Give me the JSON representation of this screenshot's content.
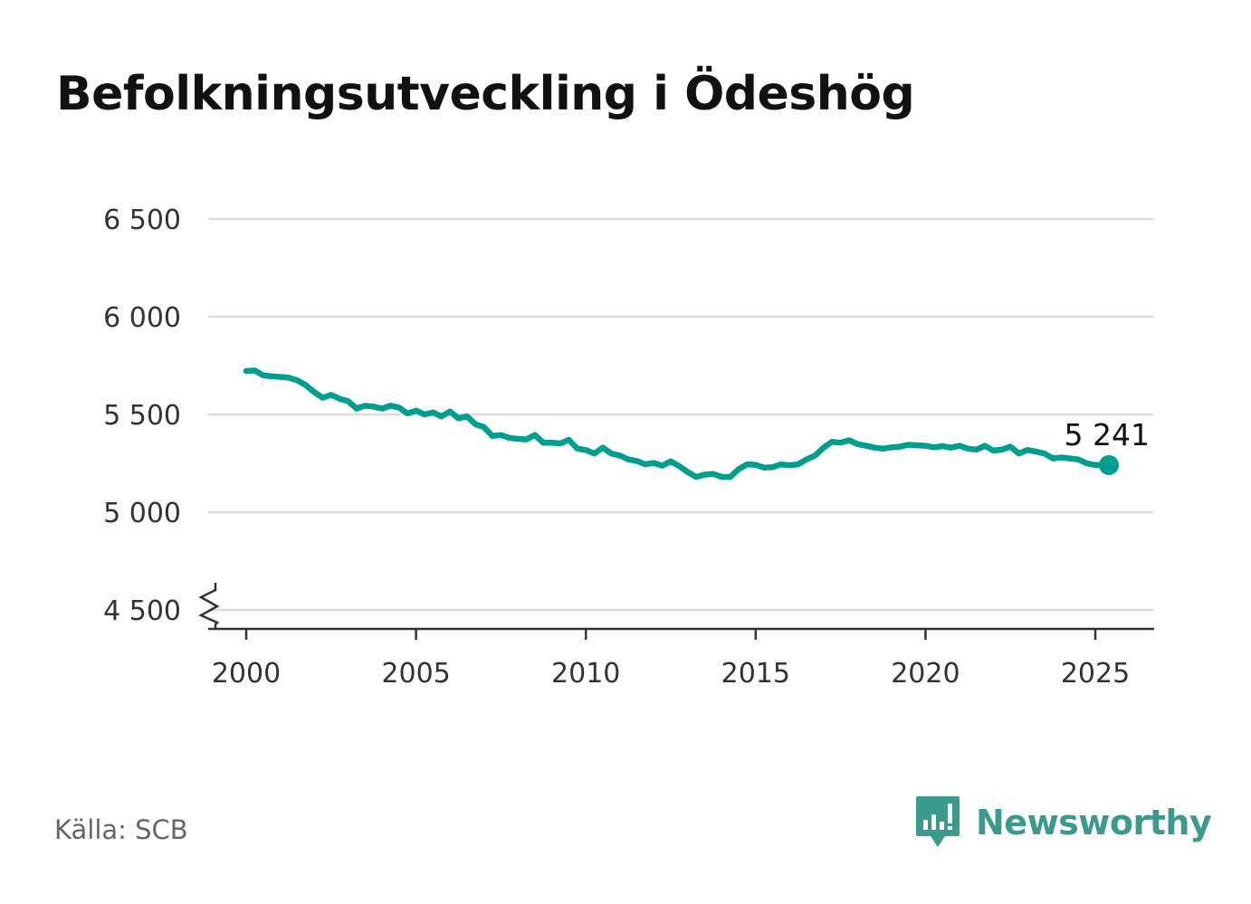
{
  "title": "Befolkningsutveckling i Ödeshög",
  "source": "Källa: SCB",
  "logo_text": "Newsworthy",
  "colors": {
    "line": "#009e8e",
    "grid": "#dddddd",
    "axis": "#333333",
    "logo": "#3a9a8b"
  },
  "chart_data": {
    "type": "line",
    "title": "Befolkningsutveckling i Ödeshög",
    "xlabel": "",
    "ylabel": "",
    "xlim": [
      1999.4,
      2026.7
    ],
    "ylim": [
      4400,
      6500
    ],
    "axis_break": true,
    "grid": "horizontal",
    "y_ticks": [
      4500,
      5000,
      5500,
      6000,
      6500
    ],
    "y_tick_labels": [
      "4 500",
      "5 000",
      "5 500",
      "6 000",
      "6 500"
    ],
    "x_ticks": [
      2000,
      2005,
      2010,
      2015,
      2020,
      2025
    ],
    "x_tick_labels": [
      "2000",
      "2005",
      "2010",
      "2015",
      "2020",
      "2025"
    ],
    "last_value_label": "5 241",
    "series": [
      {
        "x": [
          2000.0,
          2000.25,
          2000.5,
          2000.75,
          2001.0,
          2001.25,
          2001.5,
          2001.75,
          2002.0,
          2002.25,
          2002.5,
          2002.75,
          2003.0,
          2003.25,
          2003.5,
          2003.75,
          2004.0,
          2004.25,
          2004.5,
          2004.75,
          2005.0,
          2005.25,
          2005.5,
          2005.75,
          2006.0,
          2006.25,
          2006.5,
          2006.75,
          2007.0,
          2007.25,
          2007.5,
          2007.75,
          2008.0,
          2008.25,
          2008.5,
          2008.75,
          2009.0,
          2009.25,
          2009.5,
          2009.75,
          2010.0,
          2010.25,
          2010.5,
          2010.75,
          2011.0,
          2011.25,
          2011.5,
          2011.75,
          2012.0,
          2012.25,
          2012.5,
          2012.75,
          2013.0,
          2013.25,
          2013.5,
          2013.75,
          2014.0,
          2014.25,
          2014.5,
          2014.75,
          2015.0,
          2015.25,
          2015.5,
          2015.75,
          2016.0,
          2016.25,
          2016.5,
          2016.75,
          2017.0,
          2017.25,
          2017.5,
          2017.75,
          2018.0,
          2018.25,
          2018.5,
          2018.75,
          2019.0,
          2019.25,
          2019.5,
          2019.75,
          2020.0,
          2020.25,
          2020.5,
          2020.75,
          2021.0,
          2021.25,
          2021.5,
          2021.75,
          2022.0,
          2022.25,
          2022.5,
          2022.75,
          2023.0,
          2023.25,
          2023.5,
          2023.75,
          2024.0,
          2024.25,
          2024.5,
          2024.75,
          2025.0,
          2025.25,
          2025.4
        ],
        "values": [
          5722,
          5725,
          5700,
          5695,
          5692,
          5688,
          5675,
          5650,
          5615,
          5585,
          5600,
          5580,
          5568,
          5530,
          5545,
          5540,
          5530,
          5545,
          5535,
          5505,
          5520,
          5500,
          5510,
          5490,
          5515,
          5480,
          5490,
          5450,
          5435,
          5390,
          5395,
          5380,
          5375,
          5372,
          5395,
          5355,
          5355,
          5352,
          5370,
          5325,
          5318,
          5300,
          5330,
          5300,
          5290,
          5270,
          5262,
          5245,
          5252,
          5238,
          5260,
          5235,
          5205,
          5180,
          5192,
          5196,
          5180,
          5180,
          5220,
          5245,
          5242,
          5228,
          5230,
          5245,
          5240,
          5245,
          5270,
          5290,
          5330,
          5360,
          5355,
          5368,
          5348,
          5340,
          5330,
          5325,
          5332,
          5335,
          5345,
          5342,
          5340,
          5332,
          5338,
          5330,
          5340,
          5325,
          5320,
          5340,
          5315,
          5320,
          5335,
          5300,
          5318,
          5310,
          5300,
          5275,
          5280,
          5275,
          5270,
          5250,
          5241,
          5241,
          5241
        ]
      }
    ]
  }
}
